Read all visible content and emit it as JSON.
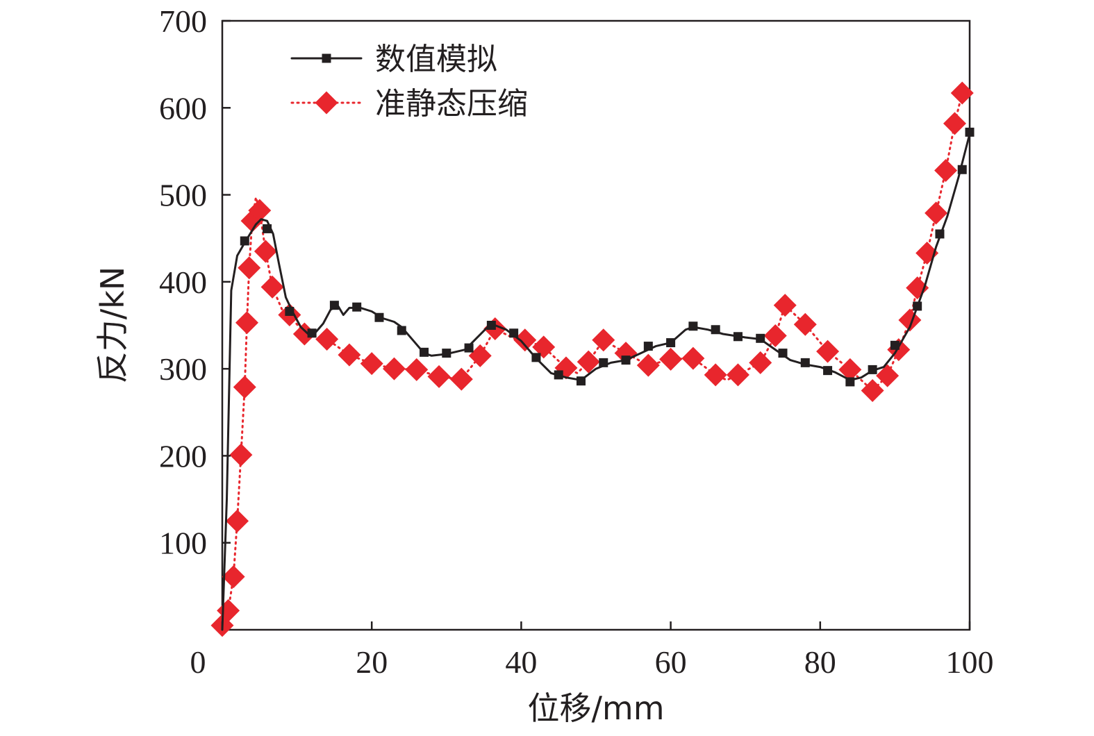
{
  "chart_data": {
    "type": "line",
    "xlabel": "位移/mm",
    "ylabel": "反力/kN",
    "xlim": [
      0,
      100
    ],
    "ylim": [
      0,
      700
    ],
    "xticks": [
      0,
      20,
      40,
      60,
      80,
      100
    ],
    "yticks": [
      100,
      200,
      300,
      400,
      500,
      600,
      700
    ],
    "x_origin_label": "0",
    "legend_position": "top-left",
    "grid": false,
    "series": [
      {
        "name": "数值模拟",
        "color": "#231f20",
        "line_style": "solid",
        "marker": "square",
        "line": [
          [
            0,
            0
          ],
          [
            0.6,
            150
          ],
          [
            1.2,
            390
          ],
          [
            2,
            430
          ],
          [
            3,
            445
          ],
          [
            4.5,
            466
          ],
          [
            5.2,
            472
          ],
          [
            6,
            470
          ],
          [
            6.8,
            455
          ],
          [
            7.6,
            420
          ],
          [
            8.5,
            382
          ],
          [
            9.5,
            364
          ],
          [
            10.5,
            348
          ],
          [
            11.5,
            340
          ],
          [
            12.5,
            342
          ],
          [
            13.5,
            352
          ],
          [
            14.5,
            368
          ],
          [
            15.5,
            372
          ],
          [
            16.2,
            362
          ],
          [
            17,
            370
          ],
          [
            18.5,
            370
          ],
          [
            20,
            366
          ],
          [
            21.5,
            358
          ],
          [
            23,
            354
          ],
          [
            24,
            348
          ],
          [
            25.5,
            333
          ],
          [
            27,
            318
          ],
          [
            28,
            315
          ],
          [
            30,
            317
          ],
          [
            32.5,
            322
          ],
          [
            34,
            335
          ],
          [
            35.5,
            348
          ],
          [
            36.5,
            350
          ],
          [
            38,
            345
          ],
          [
            40,
            332
          ],
          [
            42,
            312
          ],
          [
            44,
            295
          ],
          [
            46,
            290
          ],
          [
            48,
            287
          ],
          [
            50,
            300
          ],
          [
            52,
            307
          ],
          [
            54,
            310
          ],
          [
            56,
            318
          ],
          [
            58,
            326
          ],
          [
            60,
            330
          ],
          [
            62,
            345
          ],
          [
            63,
            348
          ],
          [
            65,
            345
          ],
          [
            67,
            340
          ],
          [
            70,
            336
          ],
          [
            72,
            334
          ],
          [
            74,
            322
          ],
          [
            76,
            310
          ],
          [
            78,
            305
          ],
          [
            80,
            302
          ],
          [
            82,
            296
          ],
          [
            84,
            287
          ],
          [
            85.5,
            290
          ],
          [
            87,
            298
          ],
          [
            88.5,
            302
          ],
          [
            90,
            318
          ],
          [
            92,
            348
          ],
          [
            94,
            395
          ],
          [
            95.5,
            440
          ],
          [
            97,
            475
          ],
          [
            98.5,
            520
          ],
          [
            100,
            570
          ]
        ],
        "points": [
          [
            3,
            447
          ],
          [
            6,
            461
          ],
          [
            9,
            366
          ],
          [
            12,
            341
          ],
          [
            15,
            373
          ],
          [
            18,
            371
          ],
          [
            21,
            359
          ],
          [
            24,
            344
          ],
          [
            27,
            319
          ],
          [
            30,
            318
          ],
          [
            33,
            324
          ],
          [
            36,
            350
          ],
          [
            39,
            341
          ],
          [
            42,
            313
          ],
          [
            45,
            293
          ],
          [
            48,
            286
          ],
          [
            51,
            307
          ],
          [
            54,
            310
          ],
          [
            57,
            326
          ],
          [
            60,
            330
          ],
          [
            63,
            349
          ],
          [
            66,
            345
          ],
          [
            69,
            337
          ],
          [
            72,
            335
          ],
          [
            75,
            318
          ],
          [
            78,
            307
          ],
          [
            81,
            298
          ],
          [
            84,
            285
          ],
          [
            87,
            299
          ],
          [
            90,
            327
          ],
          [
            93,
            372
          ],
          [
            96,
            455
          ],
          [
            99,
            529
          ],
          [
            100,
            572
          ]
        ]
      },
      {
        "name": "准静态压缩",
        "color": "#e8262d",
        "line_style": "dotted",
        "marker": "diamond",
        "line": [
          [
            0,
            5
          ],
          [
            0.8,
            22
          ],
          [
            1.5,
            61
          ],
          [
            2,
            125
          ],
          [
            2.5,
            201
          ],
          [
            3,
            279
          ],
          [
            3.3,
            353
          ],
          [
            3.6,
            416
          ],
          [
            4,
            470
          ],
          [
            4.5,
            497
          ],
          [
            5,
            482
          ],
          [
            5.8,
            435
          ],
          [
            6.7,
            394
          ],
          [
            8,
            368
          ],
          [
            9,
            362
          ],
          [
            11,
            340
          ],
          [
            14,
            334
          ],
          [
            17,
            316
          ],
          [
            20,
            306
          ],
          [
            23,
            300
          ],
          [
            26,
            299
          ],
          [
            29,
            291
          ],
          [
            32,
            288
          ],
          [
            34.5,
            315
          ],
          [
            36.5,
            346
          ],
          [
            39,
            335
          ],
          [
            40.5,
            333
          ],
          [
            43,
            325
          ],
          [
            46,
            301
          ],
          [
            47.5,
            295
          ],
          [
            49,
            308
          ],
          [
            51,
            333
          ],
          [
            54,
            318
          ],
          [
            57,
            304
          ],
          [
            60,
            311
          ],
          [
            63,
            312
          ],
          [
            66,
            293
          ],
          [
            67.5,
            287
          ],
          [
            69,
            293
          ],
          [
            72,
            307
          ],
          [
            74,
            338
          ],
          [
            75.3,
            373
          ],
          [
            78,
            351
          ],
          [
            81,
            320
          ],
          [
            84,
            299
          ],
          [
            87,
            275
          ],
          [
            89,
            292
          ],
          [
            90.5,
            322
          ],
          [
            92,
            356
          ],
          [
            93,
            393
          ],
          [
            94.3,
            433
          ],
          [
            95.5,
            479
          ],
          [
            96.8,
            528
          ],
          [
            98,
            582
          ],
          [
            99,
            617
          ]
        ],
        "points": [
          [
            0,
            5
          ],
          [
            0.8,
            22
          ],
          [
            1.5,
            61
          ],
          [
            2,
            125
          ],
          [
            2.5,
            201
          ],
          [
            3,
            279
          ],
          [
            3.3,
            353
          ],
          [
            3.6,
            416
          ],
          [
            4,
            470
          ],
          [
            5,
            482
          ],
          [
            5.8,
            435
          ],
          [
            6.7,
            394
          ],
          [
            9,
            362
          ],
          [
            11,
            340
          ],
          [
            14,
            334
          ],
          [
            17,
            316
          ],
          [
            20,
            306
          ],
          [
            23,
            300
          ],
          [
            26,
            299
          ],
          [
            29,
            291
          ],
          [
            32,
            288
          ],
          [
            34.5,
            315
          ],
          [
            36.5,
            346
          ],
          [
            40.5,
            333
          ],
          [
            43,
            325
          ],
          [
            46,
            301
          ],
          [
            49,
            308
          ],
          [
            51,
            333
          ],
          [
            54,
            318
          ],
          [
            57,
            304
          ],
          [
            60,
            311
          ],
          [
            63,
            312
          ],
          [
            66,
            293
          ],
          [
            69,
            293
          ],
          [
            72,
            307
          ],
          [
            74,
            338
          ],
          [
            75.3,
            373
          ],
          [
            78,
            351
          ],
          [
            81,
            320
          ],
          [
            84,
            299
          ],
          [
            87,
            275
          ],
          [
            89,
            292
          ],
          [
            90.5,
            322
          ],
          [
            92,
            356
          ],
          [
            93,
            393
          ],
          [
            94.3,
            433
          ],
          [
            95.5,
            479
          ],
          [
            96.8,
            528
          ],
          [
            98,
            582
          ],
          [
            99,
            617
          ]
        ]
      }
    ]
  }
}
